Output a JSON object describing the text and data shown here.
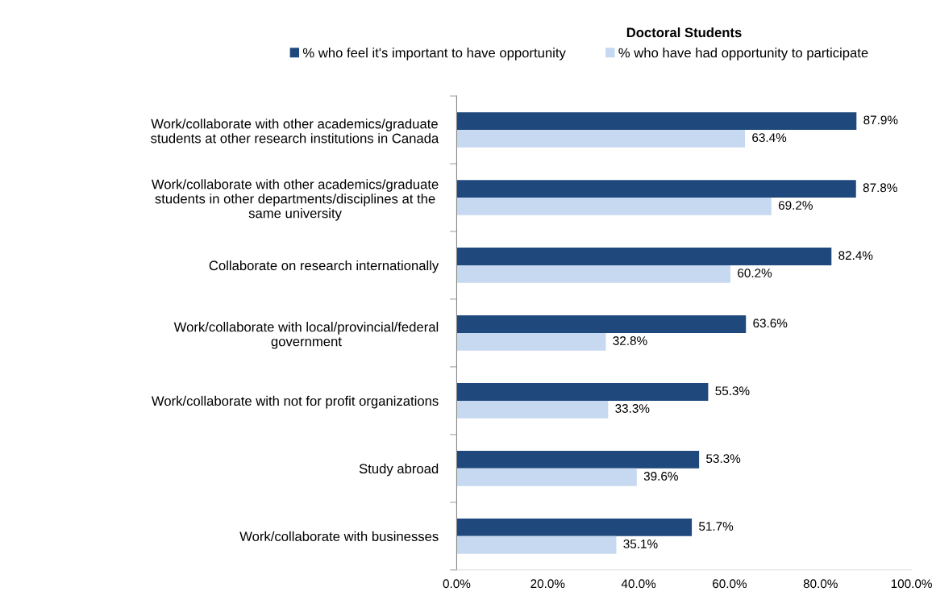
{
  "chart_data": {
    "type": "bar",
    "orientation": "horizontal",
    "title": "Doctoral Students",
    "categories": [
      "Work/collaborate with other academics/graduate\nstudents at other research institutions in Canada",
      "Work/collaborate with other academics/graduate\nstudents in other departments/disciplines at the\nsame university",
      "Collaborate on research internationally",
      "Work/collaborate with local/provincial/federal\ngovernment",
      "Work/collaborate with not for profit organizations",
      "Study abroad",
      "Work/collaborate with businesses"
    ],
    "series": [
      {
        "name": "% who feel it's important to have opportunity",
        "color": "#1f497d",
        "values": [
          87.9,
          87.8,
          82.4,
          63.6,
          55.3,
          53.3,
          51.7
        ],
        "value_labels": [
          "87.9%",
          "87.8%",
          "82.4%",
          "63.6%",
          "55.3%",
          "53.3%",
          "51.7%"
        ]
      },
      {
        "name": "% who have had opportunity to participate",
        "color": "#c6d9f1",
        "values": [
          63.4,
          69.2,
          60.2,
          32.8,
          33.3,
          39.6,
          35.1
        ],
        "value_labels": [
          "63.4%",
          "69.2%",
          "60.2%",
          "32.8%",
          "33.3%",
          "39.6%",
          "35.1%"
        ]
      }
    ],
    "xlim": [
      0,
      100
    ],
    "xticks": [
      {
        "value": 0,
        "label": "0.0%"
      },
      {
        "value": 20,
        "label": "20.0%"
      },
      {
        "value": 40,
        "label": "40.0%"
      },
      {
        "value": 60,
        "label": "60.0%"
      },
      {
        "value": 80,
        "label": "80.0%"
      },
      {
        "value": 100,
        "label": "100.0%"
      }
    ],
    "grid": false,
    "legend": "top"
  }
}
